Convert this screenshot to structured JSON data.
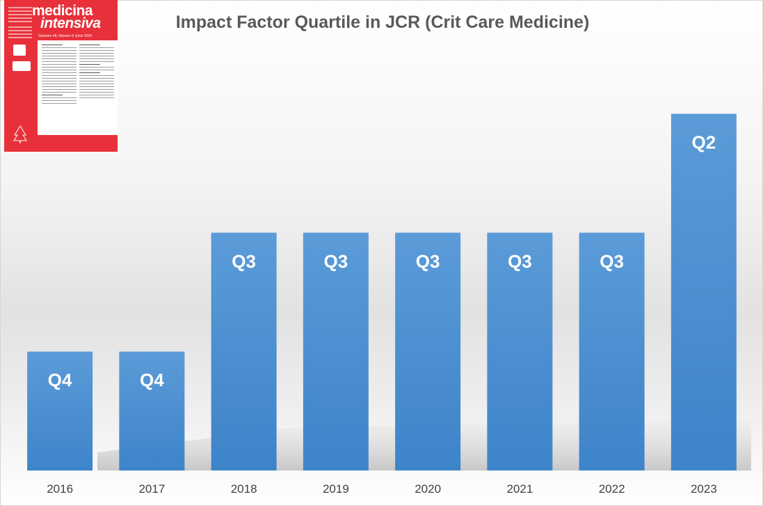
{
  "chart_data": {
    "type": "bar",
    "title": "Impact Factor Quartile in JCR (Crit Care Medicine)",
    "categories": [
      "2016",
      "2017",
      "2018",
      "2019",
      "2020",
      "2021",
      "2022",
      "2023"
    ],
    "values": [
      1,
      1,
      2,
      2,
      2,
      2,
      2,
      3
    ],
    "labels": [
      "Q4",
      "Q4",
      "Q3",
      "Q3",
      "Q3",
      "Q3",
      "Q3",
      "Q2"
    ],
    "ylim": [
      0,
      3.6
    ],
    "grid": false,
    "legend": "none",
    "bar_color": "#4a8fd4"
  },
  "cover": {
    "line1": "medicina",
    "line2": "intensiva",
    "volume": "Volumen 48, Número 6 Junio 2024"
  }
}
